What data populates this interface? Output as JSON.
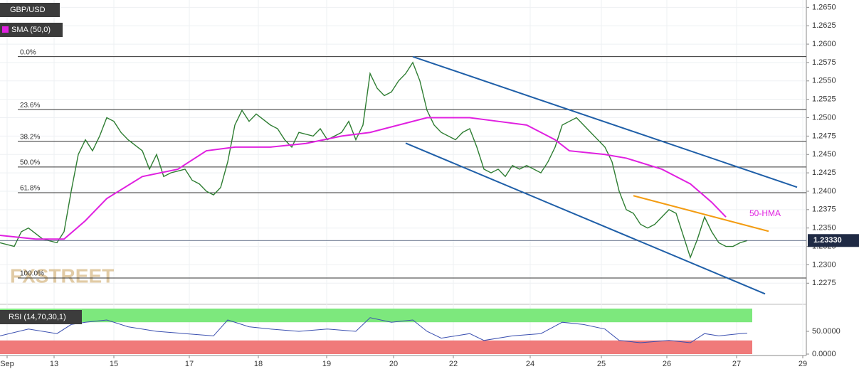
{
  "chart_data": {
    "type": "line",
    "symbol": "GBP/USD",
    "sma_label": "SMA (50,0)",
    "rsi_label": "RSI (14,70,30,1)",
    "watermark": "FXSTREET",
    "annotation": "50-HMA",
    "grid": true,
    "xlim": [
      0,
      113.3
    ],
    "xticks": [
      {
        "value": 1,
        "label": "Sep"
      },
      {
        "value": 7.6,
        "label": "13"
      },
      {
        "value": 16,
        "label": "15"
      },
      {
        "value": 26.6,
        "label": "17"
      },
      {
        "value": 36.3,
        "label": "18"
      },
      {
        "value": 45.9,
        "label": "19"
      },
      {
        "value": 55.3,
        "label": "20"
      },
      {
        "value": 63.7,
        "label": "22"
      },
      {
        "value": 74.5,
        "label": "24"
      },
      {
        "value": 84.5,
        "label": "25"
      },
      {
        "value": 93.7,
        "label": "26"
      },
      {
        "value": 103.5,
        "label": "27"
      },
      {
        "value": 112.8,
        "label": "29"
      }
    ],
    "ylim": [
      1.2254,
      1.266
    ],
    "yticks": [
      {
        "value": 1.265,
        "label": "1.2650"
      },
      {
        "value": 1.2625,
        "label": "1.2625"
      },
      {
        "value": 1.26,
        "label": "1.2600"
      },
      {
        "value": 1.2575,
        "label": "1.2575"
      },
      {
        "value": 1.255,
        "label": "1.2550"
      },
      {
        "value": 1.2525,
        "label": "1.2525"
      },
      {
        "value": 1.25,
        "label": "1.2500"
      },
      {
        "value": 1.2475,
        "label": "1.2475"
      },
      {
        "value": 1.245,
        "label": "1.2450"
      },
      {
        "value": 1.2425,
        "label": "1.2425"
      },
      {
        "value": 1.24,
        "label": "1.2400"
      },
      {
        "value": 1.2375,
        "label": "1.2375"
      },
      {
        "value": 1.235,
        "label": "1.2350"
      },
      {
        "value": 1.2325,
        "label": "1.2325"
      },
      {
        "value": 1.23,
        "label": "1.2300"
      },
      {
        "value": 1.2275,
        "label": "1.2275"
      }
    ],
    "current_price": {
      "value": 1.2333,
      "label": "1.23330"
    },
    "fib_levels": [
      {
        "label": "0.0%",
        "value": 1.2583
      },
      {
        "label": "23.6%",
        "value": 1.2511
      },
      {
        "label": "38.2%",
        "value": 1.2468
      },
      {
        "label": "50.0%",
        "value": 1.2433
      },
      {
        "label": "61.8%",
        "value": 1.2398
      },
      {
        "label": "100.0%",
        "value": 1.2282
      }
    ],
    "series": [
      {
        "name": "GBP/USD",
        "color": "#2e7d32",
        "x": [
          0,
          2,
          3,
          4,
          6,
          8,
          9,
          10,
          11,
          12,
          13,
          14,
          15,
          16,
          17,
          18,
          20,
          21,
          22,
          23,
          24,
          26,
          27,
          28,
          29,
          30,
          31,
          32,
          33,
          34,
          35,
          36,
          38,
          39,
          40,
          41,
          42,
          44,
          45,
          46,
          48,
          49,
          50,
          51,
          52,
          53,
          54,
          55,
          56,
          57,
          58,
          59,
          60,
          61,
          62,
          63,
          64,
          65,
          66,
          67,
          68,
          69,
          70,
          71,
          72,
          73,
          74,
          75,
          76,
          77,
          78,
          79,
          80,
          81,
          82,
          83,
          84,
          85,
          86,
          87,
          88,
          89,
          90,
          91,
          92,
          93,
          94,
          95,
          96,
          97,
          98,
          99,
          100,
          101,
          102,
          103,
          104,
          105
        ],
        "values": [
          1.233,
          1.2325,
          1.2345,
          1.235,
          1.2335,
          1.233,
          1.2345,
          1.24,
          1.245,
          1.247,
          1.2455,
          1.2475,
          1.25,
          1.2495,
          1.248,
          1.247,
          1.2455,
          1.243,
          1.245,
          1.242,
          1.2425,
          1.243,
          1.2415,
          1.241,
          1.24,
          1.2395,
          1.2405,
          1.244,
          1.249,
          1.251,
          1.2495,
          1.2505,
          1.249,
          1.2485,
          1.247,
          1.246,
          1.248,
          1.2475,
          1.2485,
          1.247,
          1.248,
          1.2495,
          1.247,
          1.249,
          1.256,
          1.254,
          1.253,
          1.2535,
          1.255,
          1.256,
          1.2575,
          1.255,
          1.251,
          1.249,
          1.248,
          1.2475,
          1.247,
          1.248,
          1.2485,
          1.246,
          1.243,
          1.2425,
          1.243,
          1.242,
          1.2435,
          1.243,
          1.2435,
          1.243,
          1.2425,
          1.244,
          1.246,
          1.249,
          1.2495,
          1.25,
          1.249,
          1.248,
          1.247,
          1.246,
          1.244,
          1.24,
          1.2375,
          1.237,
          1.2355,
          1.235,
          1.2355,
          1.2365,
          1.2375,
          1.237,
          1.234,
          1.231,
          1.2335,
          1.2365,
          1.2345,
          1.233,
          1.2325,
          1.2325,
          1.233,
          1.2333
        ]
      },
      {
        "name": "SMA (50,0)",
        "color": "#e020e0",
        "x": [
          0,
          5,
          9,
          12,
          15,
          20,
          25,
          29,
          33,
          38,
          43,
          48,
          52,
          56,
          60,
          66,
          70,
          74,
          78,
          80,
          85,
          88,
          93,
          97,
          100,
          102
        ],
        "values": [
          1.234,
          1.2335,
          1.2335,
          1.236,
          1.239,
          1.242,
          1.243,
          1.2455,
          1.246,
          1.246,
          1.2465,
          1.2475,
          1.248,
          1.249,
          1.25,
          1.25,
          1.2495,
          1.249,
          1.247,
          1.2455,
          1.245,
          1.2445,
          1.243,
          1.241,
          1.2385,
          1.2365
        ]
      }
    ],
    "trendlines": [
      {
        "color": "#1f5fa8",
        "x": [
          58,
          112
        ],
        "values": [
          1.2583,
          1.24055
        ]
      },
      {
        "color": "#1f5fa8",
        "x": [
          57,
          107.5
        ],
        "values": [
          1.24654,
          1.22605
        ]
      },
      {
        "color": "#f39c12",
        "x": [
          89,
          108
        ],
        "values": [
          1.23939,
          1.23456
        ]
      }
    ],
    "rsi": {
      "color": "#3a4fb0",
      "ylim": [
        0,
        100
      ],
      "overbought": 70,
      "oversold": 30,
      "yticks": [
        {
          "value": 50,
          "label": "50.0000"
        },
        {
          "value": 0,
          "label": "0.0000"
        }
      ],
      "x": [
        0,
        4,
        8,
        10,
        12,
        15,
        18,
        22,
        26,
        30,
        32,
        35,
        38,
        42,
        46,
        50,
        52,
        55,
        58,
        60,
        62,
        66,
        68,
        72,
        76,
        79,
        82,
        85,
        87,
        90,
        94,
        97,
        99,
        101,
        104,
        105
      ],
      "values": [
        40,
        55,
        45,
        65,
        70,
        75,
        60,
        50,
        45,
        40,
        75,
        60,
        55,
        50,
        55,
        50,
        80,
        70,
        75,
        50,
        35,
        45,
        30,
        40,
        45,
        70,
        65,
        55,
        30,
        25,
        30,
        25,
        45,
        40,
        45,
        46
      ]
    }
  }
}
